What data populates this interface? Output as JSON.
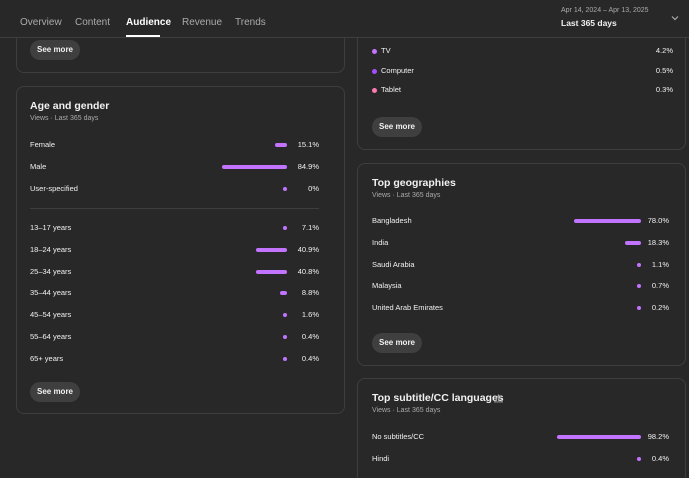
{
  "tabs": [
    {
      "label": "Overview"
    },
    {
      "label": "Content"
    },
    {
      "label": "Audience"
    },
    {
      "label": "Revenue"
    },
    {
      "label": "Trends"
    }
  ],
  "active_tab": "Audience",
  "date": {
    "range": "Apr 14, 2024 – Apr 13, 2025",
    "label": "Last 365 days"
  },
  "colors": {
    "accent": "#c274ff",
    "background": "#282828",
    "card_border": "#3e3e3e"
  },
  "top_card": {
    "see_more": "See more"
  },
  "device_card": {
    "rows": [
      {
        "label": "TV",
        "value": "4.2%",
        "dot_color": "#c274ff"
      },
      {
        "label": "Computer",
        "value": "0.5%",
        "dot_color": "#a64dff"
      },
      {
        "label": "Tablet",
        "value": "0.3%",
        "dot_color": "#ff7ab2"
      }
    ],
    "see_more": "See more"
  },
  "age_gender": {
    "title": "Age and gender",
    "subtitle": "Views · Last 365 days",
    "gender": [
      {
        "label": "Female",
        "value": "15.1%",
        "fraction": 0.151
      },
      {
        "label": "Male",
        "value": "84.9%",
        "fraction": 0.849
      },
      {
        "label": "User-specified",
        "value": "0%",
        "fraction": 0
      }
    ],
    "age": [
      {
        "label": "13–17 years",
        "value": "7.1%",
        "fraction": 0.071
      },
      {
        "label": "18–24 years",
        "value": "40.9%",
        "fraction": 0.409
      },
      {
        "label": "25–34 years",
        "value": "40.8%",
        "fraction": 0.408
      },
      {
        "label": "35–44 years",
        "value": "8.8%",
        "fraction": 0.088
      },
      {
        "label": "45–54 years",
        "value": "1.6%",
        "fraction": 0.016
      },
      {
        "label": "55–64 years",
        "value": "0.4%",
        "fraction": 0.004
      },
      {
        "label": "65+ years",
        "value": "0.4%",
        "fraction": 0.004
      }
    ],
    "see_more": "See more"
  },
  "geographies": {
    "title": "Top geographies",
    "subtitle": "Views · Last 365 days",
    "rows": [
      {
        "label": "Bangladesh",
        "value": "78.0%",
        "fraction": 0.78
      },
      {
        "label": "India",
        "value": "18.3%",
        "fraction": 0.183
      },
      {
        "label": "Saudi Arabia",
        "value": "1.1%",
        "fraction": 0.011
      },
      {
        "label": "Malaysia",
        "value": "0.7%",
        "fraction": 0.007
      },
      {
        "label": "United Arab Emirates",
        "value": "0.2%",
        "fraction": 0.002
      }
    ],
    "see_more": "See more"
  },
  "subtitles": {
    "title": "Top subtitle/CC languages",
    "subtitle": "Views · Last 365 days",
    "warning_icon": "warning-icon",
    "rows": [
      {
        "label": "No subtitles/CC",
        "value": "98.2%",
        "fraction": 0.982
      },
      {
        "label": "Hindi",
        "value": "0.4%",
        "fraction": 0.004
      }
    ]
  }
}
